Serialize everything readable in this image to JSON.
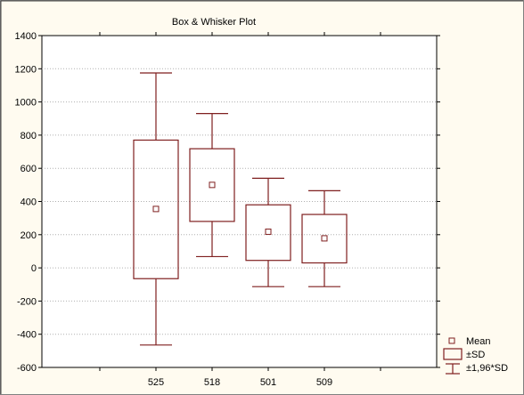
{
  "chart_data": {
    "type": "box",
    "title": "Box & Whisker Plot",
    "xlabel": "",
    "ylabel": "",
    "ylim": [
      -600,
      1400
    ],
    "yticks": [
      -600,
      -400,
      -200,
      0,
      200,
      400,
      600,
      800,
      1000,
      1200,
      1400
    ],
    "grid": true,
    "legend_position": "bottom-right",
    "categories": [
      "525",
      "518",
      "501",
      "509"
    ],
    "boxes": [
      {
        "category": "525",
        "mean": 355,
        "sd_low": -65,
        "sd_high": 770,
        "whisker_low": -465,
        "whisker_high": 1175
      },
      {
        "category": "518",
        "mean": 500,
        "sd_low": 280,
        "sd_high": 718,
        "whisker_low": 68,
        "whisker_high": 930
      },
      {
        "category": "501",
        "mean": 218,
        "sd_low": 45,
        "sd_high": 380,
        "whisker_low": -113,
        "whisker_high": 540
      },
      {
        "category": "509",
        "mean": 178,
        "sd_low": 30,
        "sd_high": 322,
        "whisker_low": -113,
        "whisker_high": 465
      }
    ],
    "legend": [
      {
        "key": "mean",
        "label": "Mean"
      },
      {
        "key": "box",
        "label": "±SD"
      },
      {
        "key": "whisker",
        "label": "±1,96*SD"
      }
    ],
    "colors": {
      "series": "#7f1f1f",
      "grid": "#b0b0b0",
      "background": "#fffbf0",
      "plot_background": "#ffffff"
    }
  }
}
